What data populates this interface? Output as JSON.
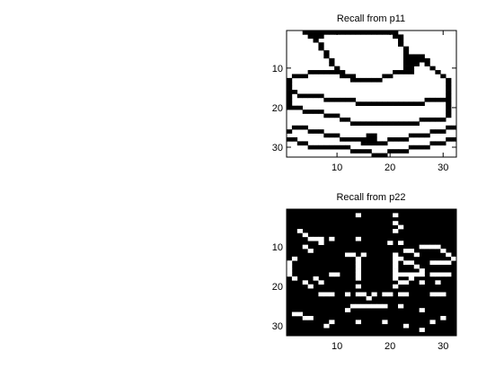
{
  "chart_data": [
    {
      "type": "heatmap",
      "title": "Recall from p11",
      "colormap": "gray-binary",
      "background_color": "#ffffff",
      "foreground_color": "#000000",
      "xlim": [
        0.5,
        32.5
      ],
      "ylim": [
        0.5,
        32.5
      ],
      "y_direction": "reversed",
      "xticks": [
        10,
        20,
        30
      ],
      "yticks": [
        10,
        20,
        30
      ],
      "xtick_labels": [
        "10",
        "20",
        "30"
      ],
      "ytick_labels": [
        "10",
        "20",
        "30"
      ],
      "cells_on": [
        [
          4,
          1
        ],
        [
          5,
          1
        ],
        [
          6,
          1
        ],
        [
          7,
          1
        ],
        [
          8,
          1
        ],
        [
          9,
          1
        ],
        [
          10,
          1
        ],
        [
          11,
          1
        ],
        [
          12,
          1
        ],
        [
          13,
          1
        ],
        [
          14,
          1
        ],
        [
          15,
          1
        ],
        [
          16,
          1
        ],
        [
          17,
          1
        ],
        [
          18,
          1
        ],
        [
          19,
          1
        ],
        [
          20,
          1
        ],
        [
          21,
          1
        ],
        [
          5,
          2
        ],
        [
          6,
          2
        ],
        [
          7,
          2
        ],
        [
          21,
          2
        ],
        [
          22,
          2
        ],
        [
          6,
          3
        ],
        [
          22,
          3
        ],
        [
          7,
          4
        ],
        [
          22,
          4
        ],
        [
          7,
          5
        ],
        [
          23,
          5
        ],
        [
          8,
          6
        ],
        [
          23,
          6
        ],
        [
          8,
          7
        ],
        [
          23,
          7
        ],
        [
          24,
          7
        ],
        [
          25,
          7
        ],
        [
          26,
          7
        ],
        [
          9,
          8
        ],
        [
          23,
          8
        ],
        [
          24,
          8
        ],
        [
          25,
          8
        ],
        [
          26,
          8
        ],
        [
          27,
          8
        ],
        [
          9,
          9
        ],
        [
          23,
          9
        ],
        [
          24,
          9
        ],
        [
          25,
          9
        ],
        [
          27,
          9
        ],
        [
          10,
          10
        ],
        [
          23,
          10
        ],
        [
          24,
          10
        ],
        [
          28,
          10
        ],
        [
          5,
          11
        ],
        [
          6,
          11
        ],
        [
          7,
          11
        ],
        [
          8,
          11
        ],
        [
          9,
          11
        ],
        [
          10,
          11
        ],
        [
          11,
          11
        ],
        [
          21,
          11
        ],
        [
          22,
          11
        ],
        [
          23,
          11
        ],
        [
          24,
          11
        ],
        [
          29,
          11
        ],
        [
          2,
          12
        ],
        [
          3,
          12
        ],
        [
          4,
          12
        ],
        [
          11,
          12
        ],
        [
          12,
          12
        ],
        [
          13,
          12
        ],
        [
          19,
          12
        ],
        [
          20,
          12
        ],
        [
          30,
          12
        ],
        [
          1,
          13
        ],
        [
          13,
          13
        ],
        [
          14,
          13
        ],
        [
          15,
          13
        ],
        [
          16,
          13
        ],
        [
          17,
          13
        ],
        [
          18,
          13
        ],
        [
          31,
          13
        ],
        [
          1,
          14
        ],
        [
          31,
          14
        ],
        [
          1,
          15
        ],
        [
          31,
          15
        ],
        [
          1,
          16
        ],
        [
          2,
          16
        ],
        [
          31,
          16
        ],
        [
          1,
          17
        ],
        [
          3,
          17
        ],
        [
          4,
          17
        ],
        [
          5,
          17
        ],
        [
          6,
          17
        ],
        [
          7,
          17
        ],
        [
          31,
          17
        ],
        [
          1,
          18
        ],
        [
          8,
          18
        ],
        [
          9,
          18
        ],
        [
          10,
          18
        ],
        [
          11,
          18
        ],
        [
          12,
          18
        ],
        [
          13,
          18
        ],
        [
          27,
          18
        ],
        [
          28,
          18
        ],
        [
          29,
          18
        ],
        [
          30,
          18
        ],
        [
          31,
          18
        ],
        [
          1,
          19
        ],
        [
          14,
          19
        ],
        [
          15,
          19
        ],
        [
          16,
          19
        ],
        [
          17,
          19
        ],
        [
          18,
          19
        ],
        [
          19,
          19
        ],
        [
          20,
          19
        ],
        [
          21,
          19
        ],
        [
          22,
          19
        ],
        [
          23,
          19
        ],
        [
          24,
          19
        ],
        [
          25,
          19
        ],
        [
          26,
          19
        ],
        [
          31,
          19
        ],
        [
          1,
          20
        ],
        [
          2,
          20
        ],
        [
          3,
          20
        ],
        [
          31,
          20
        ],
        [
          4,
          21
        ],
        [
          5,
          21
        ],
        [
          6,
          21
        ],
        [
          7,
          21
        ],
        [
          31,
          21
        ],
        [
          8,
          22
        ],
        [
          9,
          22
        ],
        [
          10,
          22
        ],
        [
          31,
          22
        ],
        [
          11,
          23
        ],
        [
          12,
          23
        ],
        [
          26,
          23
        ],
        [
          27,
          23
        ],
        [
          28,
          23
        ],
        [
          29,
          23
        ],
        [
          30,
          23
        ],
        [
          13,
          24
        ],
        [
          14,
          24
        ],
        [
          15,
          24
        ],
        [
          16,
          24
        ],
        [
          17,
          24
        ],
        [
          18,
          24
        ],
        [
          19,
          24
        ],
        [
          20,
          24
        ],
        [
          21,
          24
        ],
        [
          22,
          24
        ],
        [
          23,
          24
        ],
        [
          24,
          24
        ],
        [
          25,
          24
        ],
        [
          2,
          25
        ],
        [
          3,
          25
        ],
        [
          4,
          25
        ],
        [
          31,
          25
        ],
        [
          32,
          25
        ],
        [
          1,
          26
        ],
        [
          5,
          26
        ],
        [
          6,
          26
        ],
        [
          7,
          26
        ],
        [
          28,
          26
        ],
        [
          29,
          26
        ],
        [
          30,
          26
        ],
        [
          8,
          27
        ],
        [
          9,
          27
        ],
        [
          10,
          27
        ],
        [
          16,
          27
        ],
        [
          17,
          27
        ],
        [
          24,
          27
        ],
        [
          25,
          27
        ],
        [
          26,
          27
        ],
        [
          27,
          27
        ],
        [
          1,
          28
        ],
        [
          2,
          28
        ],
        [
          11,
          28
        ],
        [
          12,
          28
        ],
        [
          13,
          28
        ],
        [
          14,
          28
        ],
        [
          15,
          28
        ],
        [
          16,
          28
        ],
        [
          17,
          28
        ],
        [
          20,
          28
        ],
        [
          21,
          28
        ],
        [
          22,
          28
        ],
        [
          23,
          28
        ],
        [
          31,
          28
        ],
        [
          32,
          28
        ],
        [
          3,
          29
        ],
        [
          4,
          29
        ],
        [
          15,
          29
        ],
        [
          16,
          29
        ],
        [
          17,
          29
        ],
        [
          18,
          29
        ],
        [
          19,
          29
        ],
        [
          28,
          29
        ],
        [
          29,
          29
        ],
        [
          30,
          29
        ],
        [
          5,
          30
        ],
        [
          6,
          30
        ],
        [
          7,
          30
        ],
        [
          8,
          30
        ],
        [
          9,
          30
        ],
        [
          10,
          30
        ],
        [
          11,
          30
        ],
        [
          12,
          30
        ],
        [
          24,
          30
        ],
        [
          25,
          30
        ],
        [
          26,
          30
        ],
        [
          27,
          30
        ],
        [
          13,
          31
        ],
        [
          14,
          31
        ],
        [
          15,
          31
        ],
        [
          16,
          31
        ],
        [
          20,
          31
        ],
        [
          21,
          31
        ],
        [
          22,
          31
        ],
        [
          23,
          31
        ],
        [
          17,
          32
        ],
        [
          18,
          32
        ],
        [
          19,
          32
        ]
      ]
    },
    {
      "type": "heatmap",
      "title": "Recall from p22",
      "colormap": "gray-binary",
      "background_color": "#000000",
      "foreground_color": "#ffffff",
      "xlim": [
        0.5,
        32.5
      ],
      "ylim": [
        0.5,
        32.5
      ],
      "y_direction": "reversed",
      "xticks": [
        10,
        20,
        30
      ],
      "yticks": [
        10,
        20,
        30
      ],
      "xtick_labels": [
        "10",
        "20",
        "30"
      ],
      "ytick_labels": [
        "10",
        "20",
        "30"
      ],
      "cells_on": [
        [
          14,
          2
        ],
        [
          21,
          2
        ],
        [
          21,
          4
        ],
        [
          22,
          5
        ],
        [
          3,
          6
        ],
        [
          21,
          6
        ],
        [
          4,
          7
        ],
        [
          5,
          8
        ],
        [
          6,
          8
        ],
        [
          7,
          8
        ],
        [
          9,
          8
        ],
        [
          14,
          8
        ],
        [
          20,
          9
        ],
        [
          22,
          9
        ],
        [
          7,
          9
        ],
        [
          26,
          10
        ],
        [
          27,
          10
        ],
        [
          28,
          10
        ],
        [
          29,
          10
        ],
        [
          4,
          10
        ],
        [
          5,
          11
        ],
        [
          23,
          11
        ],
        [
          24,
          11
        ],
        [
          30,
          11
        ],
        [
          12,
          12
        ],
        [
          13,
          12
        ],
        [
          15,
          12
        ],
        [
          21,
          12
        ],
        [
          25,
          12
        ],
        [
          31,
          12
        ],
        [
          2,
          13
        ],
        [
          14,
          13
        ],
        [
          21,
          13
        ],
        [
          22,
          13
        ],
        [
          32,
          13
        ],
        [
          1,
          14
        ],
        [
          14,
          14
        ],
        [
          21,
          14
        ],
        [
          23,
          14
        ],
        [
          24,
          14
        ],
        [
          28,
          14
        ],
        [
          29,
          14
        ],
        [
          30,
          14
        ],
        [
          31,
          14
        ],
        [
          1,
          15
        ],
        [
          14,
          15
        ],
        [
          21,
          15
        ],
        [
          25,
          15
        ],
        [
          1,
          16
        ],
        [
          14,
          16
        ],
        [
          21,
          16
        ],
        [
          26,
          16
        ],
        [
          1,
          17
        ],
        [
          9,
          17
        ],
        [
          10,
          17
        ],
        [
          14,
          17
        ],
        [
          21,
          17
        ],
        [
          22,
          17
        ],
        [
          23,
          17
        ],
        [
          24,
          17
        ],
        [
          25,
          17
        ],
        [
          26,
          17
        ],
        [
          28,
          17
        ],
        [
          29,
          17
        ],
        [
          30,
          17
        ],
        [
          31,
          17
        ],
        [
          2,
          18
        ],
        [
          6,
          18
        ],
        [
          14,
          18
        ],
        [
          21,
          18
        ],
        [
          24,
          18
        ],
        [
          4,
          19
        ],
        [
          7,
          19
        ],
        [
          22,
          19
        ],
        [
          23,
          19
        ],
        [
          26,
          19
        ],
        [
          29,
          19
        ],
        [
          5,
          20
        ],
        [
          14,
          20
        ],
        [
          21,
          20
        ],
        [
          7,
          22
        ],
        [
          8,
          22
        ],
        [
          9,
          22
        ],
        [
          12,
          22
        ],
        [
          14,
          22
        ],
        [
          15,
          22
        ],
        [
          17,
          22
        ],
        [
          19,
          22
        ],
        [
          20,
          22
        ],
        [
          22,
          22
        ],
        [
          23,
          22
        ],
        [
          28,
          22
        ],
        [
          29,
          22
        ],
        [
          30,
          22
        ],
        [
          16,
          23
        ],
        [
          13,
          25
        ],
        [
          14,
          25
        ],
        [
          15,
          25
        ],
        [
          16,
          25
        ],
        [
          17,
          25
        ],
        [
          18,
          25
        ],
        [
          19,
          25
        ],
        [
          22,
          25
        ],
        [
          12,
          26
        ],
        [
          26,
          26
        ],
        [
          2,
          27
        ],
        [
          3,
          27
        ],
        [
          4,
          28
        ],
        [
          5,
          28
        ],
        [
          30,
          28
        ],
        [
          9,
          29
        ],
        [
          14,
          29
        ],
        [
          19,
          29
        ],
        [
          28,
          29
        ],
        [
          23,
          30
        ],
        [
          8,
          30
        ],
        [
          26,
          31
        ]
      ]
    }
  ]
}
